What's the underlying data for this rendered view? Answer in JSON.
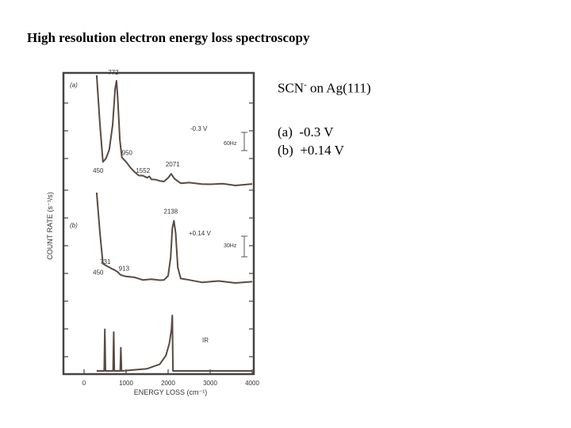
{
  "slide": {
    "title": "High resolution electron energy loss spectroscopy"
  },
  "notes": {
    "species_formula": "SCN",
    "species_charge": "-",
    "species_suffix": " on Ag(111)",
    "conditions": [
      {
        "tag": "(a)",
        "text": "-0.3 V"
      },
      {
        "tag": "(b)",
        "text": "+0.14 V"
      }
    ]
  },
  "colors": {
    "trace": "#5a4a42",
    "frame": "#444444",
    "text": "#333333"
  },
  "chart_data": {
    "type": "line",
    "xlabel": "ENERGY LOSS (cm⁻¹)",
    "ylabel": "COUNT RATE (s⁻¹/s)",
    "xlim": [
      0,
      4000
    ],
    "xticks": [
      "0",
      "1000",
      "2000",
      "3000",
      "4000"
    ],
    "series": [
      {
        "panel": "(a)",
        "label": "-0.3 V",
        "scale": "60Hz",
        "peak_labels": [
          {
            "x": 450,
            "text": "450"
          },
          {
            "x": 772,
            "text": "772"
          },
          {
            "x": 950,
            "text": "950"
          },
          {
            "x": 1552,
            "text": "1552"
          },
          {
            "x": 2071,
            "text": "2071"
          }
        ],
        "x": [
          300,
          380,
          450,
          520,
          600,
          680,
          740,
          772,
          800,
          850,
          900,
          950,
          1000,
          1100,
          1200,
          1300,
          1400,
          1500,
          1552,
          1600,
          1700,
          1800,
          1900,
          2000,
          2071,
          2150,
          2300,
          2500,
          2800,
          3000,
          3300,
          3600,
          4000
        ],
        "y": [
          100,
          55,
          22,
          25,
          33,
          55,
          88,
          95,
          80,
          42,
          26,
          24,
          22,
          17,
          13,
          10,
          9,
          8.5,
          8,
          7,
          5.5,
          5,
          4.5,
          7,
          12,
          6,
          3.5,
          2.8,
          2.2,
          2,
          1.8,
          1.5,
          1.2
        ]
      },
      {
        "panel": "(b)",
        "label": "+0.14 V",
        "scale": "30Hz",
        "peak_labels": [
          {
            "x": 450,
            "text": "450"
          },
          {
            "x": 731,
            "text": "731"
          },
          {
            "x": 913,
            "text": "913"
          },
          {
            "x": 2138,
            "text": "2138"
          }
        ],
        "x": [
          300,
          380,
          450,
          520,
          600,
          680,
          731,
          800,
          860,
          913,
          1000,
          1200,
          1400,
          1600,
          1800,
          1900,
          2000,
          2060,
          2100,
          2138,
          2180,
          2230,
          2300,
          2500,
          2800,
          3200,
          3600,
          4000
        ],
        "y": [
          100,
          55,
          22,
          20,
          18,
          16,
          15,
          13,
          10,
          9,
          8,
          6,
          5,
          4.5,
          4,
          4.5,
          8,
          30,
          60,
          70,
          55,
          18,
          6,
          3.5,
          2.5,
          2,
          1.8,
          1.6
        ]
      },
      {
        "panel": "",
        "label": "IR",
        "scale": "",
        "peak_labels": [],
        "x": [
          300,
          480,
          495,
          510,
          520,
          690,
          705,
          720,
          730,
          860,
          875,
          890,
          900,
          1500,
          1800,
          1950,
          2030,
          2080,
          2100,
          2115,
          2140,
          2300,
          4000
        ],
        "y": [
          0,
          0,
          75,
          0,
          0,
          0,
          70,
          0,
          0,
          0,
          42,
          0,
          0,
          4,
          12,
          28,
          50,
          75,
          100,
          0,
          0,
          0,
          0
        ]
      }
    ]
  }
}
